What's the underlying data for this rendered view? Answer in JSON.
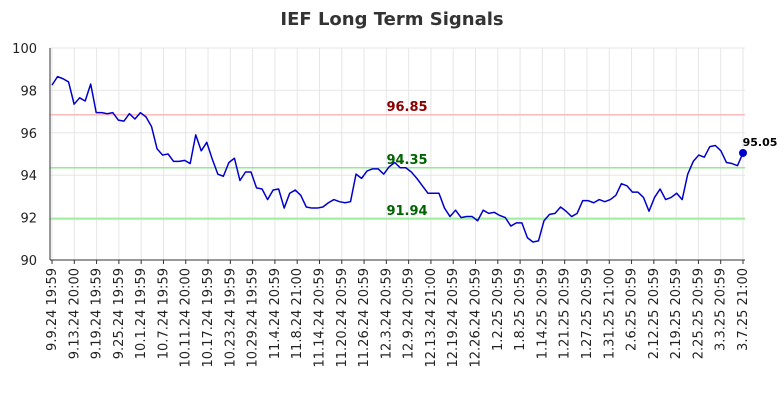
{
  "chart_data": {
    "type": "line",
    "title": "IEF Long Term Signals",
    "xlabel": "",
    "ylabel": "",
    "ylim": [
      90,
      100
    ],
    "yticks": [
      "90",
      "92",
      "94",
      "96",
      "98",
      "100"
    ],
    "xticks": [
      "9.9.24 19:59",
      "9.13.24 20:00",
      "9.19.24 19:59",
      "9.25.24 19:59",
      "10.1.24 19:59",
      "10.7.24 19:59",
      "10.11.24 20:00",
      "10.17.24 19:59",
      "10.23.24 19:59",
      "10.29.24 19:59",
      "11.4.24 20:59",
      "11.8.24 21:00",
      "11.14.24 20:59",
      "11.20.24 20:59",
      "11.26.24 20:59",
      "12.3.24 20:59",
      "12.9.24 20:59",
      "12.13.24 21:00",
      "12.19.24 20:59",
      "12.26.24 20:59",
      "1.2.25 20:59",
      "1.8.25 20:59",
      "1.14.25 20:59",
      "1.21.25 20:59",
      "1.27.25 20:59",
      "1.31.25 21:00",
      "2.6.25 20:59",
      "2.12.25 20:59",
      "2.19.25 20:59",
      "2.25.25 20:59",
      "3.3.25 20:59",
      "3.7.25 21:00"
    ],
    "grid": true,
    "series": [
      {
        "color": "#0000cc",
        "values": [
          98.25,
          98.65,
          98.55,
          98.4,
          97.35,
          97.65,
          97.5,
          98.3,
          96.95,
          96.95,
          96.9,
          96.95,
          96.6,
          96.55,
          96.9,
          96.65,
          96.95,
          96.75,
          96.3,
          95.25,
          94.95,
          95.0,
          94.65,
          94.65,
          94.7,
          94.55,
          95.9,
          95.15,
          95.55,
          94.75,
          94.05,
          93.95,
          94.6,
          94.8,
          93.75,
          94.15,
          94.15,
          93.4,
          93.35,
          92.85,
          93.3,
          93.35,
          92.45,
          93.15,
          93.3,
          93.05,
          92.5,
          92.45,
          92.45,
          92.5,
          92.7,
          92.85,
          92.75,
          92.7,
          92.75,
          94.05,
          93.85,
          94.2,
          94.3,
          94.3,
          94.05,
          94.4,
          94.6,
          94.35,
          94.35,
          94.15,
          93.85,
          93.5,
          93.15,
          93.15,
          93.15,
          92.45,
          92.05,
          92.35,
          92.0,
          92.05,
          92.05,
          91.85,
          92.35,
          92.2,
          92.25,
          92.1,
          92.0,
          91.6,
          91.75,
          91.75,
          91.05,
          90.85,
          90.9,
          91.85,
          92.15,
          92.2,
          92.5,
          92.3,
          92.05,
          92.2,
          92.8,
          92.8,
          92.7,
          92.85,
          92.75,
          92.85,
          93.05,
          93.6,
          93.5,
          93.2,
          93.2,
          92.95,
          92.3,
          92.95,
          93.35,
          92.85,
          92.95,
          93.15,
          92.85,
          94.05,
          94.65,
          94.95,
          94.85,
          95.35,
          95.4,
          95.15,
          94.6,
          94.55,
          94.45,
          95.05
        ]
      }
    ],
    "reference_lines": [
      {
        "value": 96.85,
        "label": "96.85",
        "color": "#ffbbbb",
        "label_color": "#8b0000"
      },
      {
        "value": 94.35,
        "label": "94.35",
        "color": "#90ee90",
        "label_color": "#006400"
      },
      {
        "value": 91.94,
        "label": "91.94",
        "color": "#90ee90",
        "label_color": "#006400"
      }
    ],
    "last_value_label": "95.05"
  }
}
